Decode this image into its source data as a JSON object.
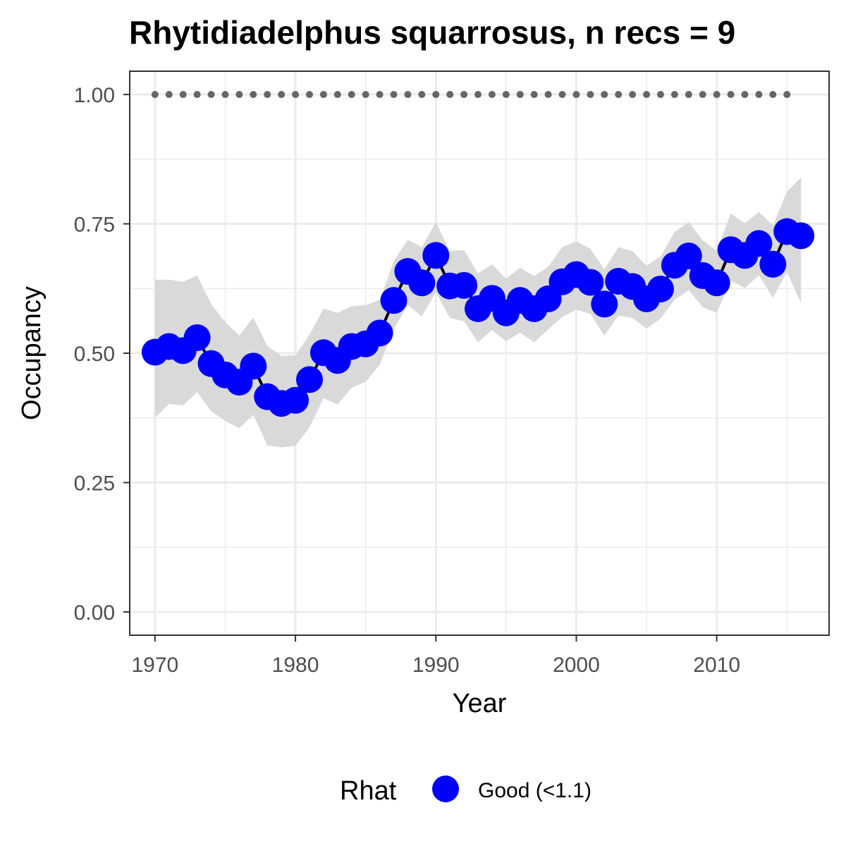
{
  "chart_data": {
    "type": "line",
    "title": "Rhytidiadelphus squarrosus, n recs = 9",
    "xlabel": "Year",
    "ylabel": "Occupancy",
    "xlim": [
      1968.2,
      2018.0
    ],
    "ylim": [
      -0.045,
      1.045
    ],
    "x_ticks": [
      1970,
      1980,
      1990,
      2000,
      2010
    ],
    "x_tick_labels": [
      "1970",
      "1980",
      "1990",
      "2000",
      "2010"
    ],
    "y_ticks": [
      0,
      0.25,
      0.5,
      0.75,
      1.0
    ],
    "y_tick_labels": [
      "0.00",
      "0.25",
      "0.50",
      "0.75",
      "1.00"
    ],
    "grid": true,
    "legend_position": "bottom",
    "legend": {
      "title": "Rhat",
      "entries": [
        {
          "label": "Good (<1.1)",
          "color": "#0000ff"
        }
      ]
    },
    "colors": {
      "points": "#0000ff",
      "line": "#000000",
      "ribbon": "#d9d9d9",
      "reference_dots": "#666666",
      "grid": "#ebebeb",
      "panel_border": "#333333"
    },
    "series": [
      {
        "x": [
          1970,
          1971,
          1972,
          1973,
          1974,
          1975,
          1976,
          1977,
          1978,
          1979,
          1980,
          1981,
          1982,
          1983,
          1984,
          1985,
          1986,
          1987,
          1988,
          1989,
          1990,
          1991,
          1992,
          1993,
          1994,
          1995,
          1996,
          1997,
          1998,
          1999,
          2000,
          2001,
          2002,
          2003,
          2004,
          2005,
          2006,
          2007,
          2008,
          2009,
          2010,
          2011,
          2012,
          2013,
          2014,
          2015,
          2016
        ],
        "y": [
          0.502,
          0.513,
          0.505,
          0.53,
          0.48,
          0.458,
          0.444,
          0.475,
          0.416,
          0.403,
          0.409,
          0.449,
          0.501,
          0.486,
          0.513,
          0.518,
          0.539,
          0.602,
          0.658,
          0.636,
          0.689,
          0.63,
          0.631,
          0.586,
          0.606,
          0.578,
          0.602,
          0.586,
          0.605,
          0.638,
          0.652,
          0.637,
          0.595,
          0.639,
          0.629,
          0.605,
          0.624,
          0.67,
          0.688,
          0.65,
          0.636,
          0.7,
          0.689,
          0.712,
          0.672,
          0.735,
          0.727
        ],
        "lower": [
          0.375,
          0.402,
          0.399,
          0.425,
          0.388,
          0.369,
          0.355,
          0.381,
          0.322,
          0.318,
          0.321,
          0.357,
          0.413,
          0.401,
          0.433,
          0.445,
          0.478,
          0.546,
          0.593,
          0.571,
          0.618,
          0.568,
          0.562,
          0.521,
          0.545,
          0.523,
          0.54,
          0.521,
          0.546,
          0.57,
          0.584,
          0.576,
          0.534,
          0.573,
          0.568,
          0.547,
          0.567,
          0.603,
          0.622,
          0.589,
          0.578,
          0.64,
          0.626,
          0.651,
          0.607,
          0.657,
          0.597
        ],
        "upper": [
          0.642,
          0.642,
          0.638,
          0.65,
          0.595,
          0.56,
          0.534,
          0.569,
          0.514,
          0.495,
          0.496,
          0.536,
          0.586,
          0.578,
          0.591,
          0.593,
          0.603,
          0.678,
          0.719,
          0.705,
          0.753,
          0.698,
          0.699,
          0.654,
          0.672,
          0.644,
          0.665,
          0.649,
          0.667,
          0.705,
          0.716,
          0.702,
          0.662,
          0.705,
          0.697,
          0.669,
          0.687,
          0.734,
          0.754,
          0.718,
          0.698,
          0.77,
          0.751,
          0.773,
          0.747,
          0.812,
          0.84
        ]
      }
    ],
    "reference_dots": {
      "x": [
        1970,
        1971,
        1972,
        1973,
        1974,
        1975,
        1976,
        1977,
        1978,
        1979,
        1980,
        1981,
        1982,
        1983,
        1984,
        1985,
        1986,
        1987,
        1988,
        1989,
        1990,
        1991,
        1992,
        1993,
        1994,
        1995,
        1996,
        1997,
        1998,
        1999,
        2000,
        2001,
        2002,
        2003,
        2004,
        2005,
        2006,
        2007,
        2008,
        2009,
        2010,
        2011,
        2012,
        2013,
        2014,
        2015
      ],
      "y": 1.0
    }
  }
}
